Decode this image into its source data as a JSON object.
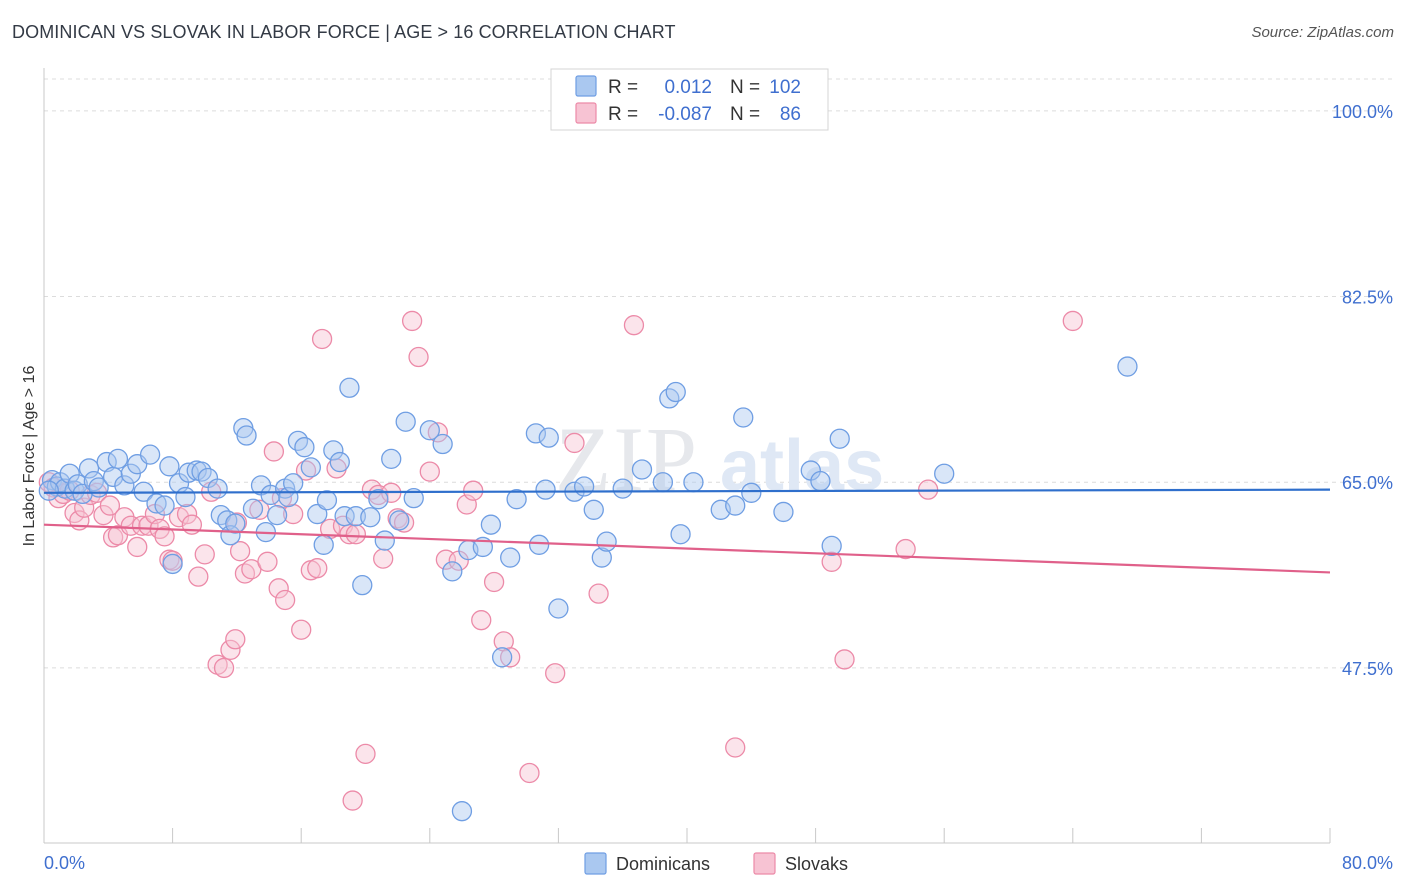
{
  "header": {
    "title": "DOMINICAN VS SLOVAK IN LABOR FORCE | AGE > 16 CORRELATION CHART",
    "source": "Source: ZipAtlas.com"
  },
  "legend_box": {
    "rows": [
      {
        "r_label": "R =",
        "r_value": "0.012",
        "n_label": "N =",
        "n_value": "102"
      },
      {
        "r_label": "R =",
        "r_value": "-0.087",
        "n_label": "N =",
        "n_value": "86"
      }
    ]
  },
  "watermark": {
    "part1": "ZIP",
    "part2": "atlas"
  },
  "colors": {
    "dominicans": "#6f9ee3",
    "dominicans_fill": "#aac8f0",
    "slovaks": "#ec8aa8",
    "slovaks_fill": "#f7c3d3",
    "blue_text": "#3f6fcf",
    "grid": "#dcdcdc",
    "blue_line": "#2f6fcc",
    "pink_line": "#e0608a"
  },
  "chart_data": {
    "type": "scatter",
    "title": "DOMINICAN VS SLOVAK IN LABOR FORCE | AGE > 16 CORRELATION CHART",
    "xlabel": "",
    "ylabel": "In Labor Force | Age > 16",
    "xlim": [
      0,
      80
    ],
    "ylim": [
      31,
      103
    ],
    "x_tick_labels": [
      "0.0%",
      "80.0%"
    ],
    "y_ticks": [
      47.5,
      65.0,
      82.5,
      100.0
    ],
    "y_tick_labels": [
      "47.5%",
      "65.0%",
      "82.5%",
      "100.0%"
    ],
    "grid": true,
    "legend_position": "bottom-center",
    "series": [
      {
        "name": "Dominicans",
        "r": 0.012,
        "n": 102,
        "trend": {
          "x": [
            0,
            80
          ],
          "y": [
            64.0,
            64.3
          ]
        },
        "points": [
          [
            0.5,
            65.2
          ],
          [
            0.8,
            64.6
          ],
          [
            1.0,
            65.0
          ],
          [
            1.3,
            64.4
          ],
          [
            1.6,
            65.8
          ],
          [
            1.9,
            64.2
          ],
          [
            2.1,
            64.8
          ],
          [
            2.4,
            63.9
          ],
          [
            2.8,
            66.3
          ],
          [
            3.1,
            65.1
          ],
          [
            3.4,
            64.5
          ],
          [
            3.9,
            66.9
          ],
          [
            4.3,
            65.5
          ],
          [
            4.6,
            67.2
          ],
          [
            5.0,
            64.7
          ],
          [
            5.4,
            65.8
          ],
          [
            5.8,
            66.7
          ],
          [
            6.2,
            64.1
          ],
          [
            6.6,
            67.6
          ],
          [
            7.0,
            63.0
          ],
          [
            7.5,
            62.8
          ],
          [
            7.8,
            66.5
          ],
          [
            8.0,
            57.3
          ],
          [
            8.4,
            64.9
          ],
          [
            8.8,
            63.6
          ],
          [
            9.0,
            65.9
          ],
          [
            9.5,
            66.1
          ],
          [
            9.8,
            66.0
          ],
          [
            10.2,
            65.4
          ],
          [
            10.8,
            64.4
          ],
          [
            11.0,
            61.9
          ],
          [
            11.4,
            61.4
          ],
          [
            11.6,
            60.0
          ],
          [
            11.9,
            61.1
          ],
          [
            12.4,
            70.1
          ],
          [
            12.6,
            69.4
          ],
          [
            13.0,
            62.5
          ],
          [
            13.5,
            64.7
          ],
          [
            13.8,
            60.3
          ],
          [
            14.1,
            63.8
          ],
          [
            14.5,
            61.9
          ],
          [
            15.0,
            64.4
          ],
          [
            15.2,
            63.6
          ],
          [
            15.5,
            64.9
          ],
          [
            15.8,
            68.9
          ],
          [
            16.2,
            68.3
          ],
          [
            16.6,
            66.4
          ],
          [
            17.0,
            62.0
          ],
          [
            17.4,
            59.1
          ],
          [
            17.6,
            63.3
          ],
          [
            18.0,
            68.0
          ],
          [
            18.4,
            66.9
          ],
          [
            18.7,
            61.8
          ],
          [
            19.0,
            73.9
          ],
          [
            19.4,
            61.8
          ],
          [
            19.8,
            55.3
          ],
          [
            20.3,
            61.7
          ],
          [
            20.8,
            63.4
          ],
          [
            21.2,
            59.5
          ],
          [
            21.6,
            67.2
          ],
          [
            22.1,
            61.4
          ],
          [
            22.5,
            70.7
          ],
          [
            23.0,
            63.5
          ],
          [
            24.0,
            69.9
          ],
          [
            24.8,
            68.6
          ],
          [
            25.4,
            56.6
          ],
          [
            26.0,
            34.0
          ],
          [
            26.4,
            58.6
          ],
          [
            27.3,
            58.9
          ],
          [
            27.8,
            61.0
          ],
          [
            28.5,
            48.5
          ],
          [
            29.0,
            57.9
          ],
          [
            29.4,
            63.4
          ],
          [
            30.6,
            69.6
          ],
          [
            30.8,
            59.1
          ],
          [
            31.2,
            64.3
          ],
          [
            31.4,
            69.2
          ],
          [
            32.0,
            53.1
          ],
          [
            33.0,
            64.1
          ],
          [
            33.6,
            64.6
          ],
          [
            34.2,
            62.4
          ],
          [
            34.7,
            57.9
          ],
          [
            35.0,
            59.4
          ],
          [
            37.2,
            66.2
          ],
          [
            38.5,
            65.0
          ],
          [
            38.9,
            72.9
          ],
          [
            39.3,
            73.5
          ],
          [
            39.6,
            60.1
          ],
          [
            40.4,
            65.0
          ],
          [
            42.1,
            62.4
          ],
          [
            43.0,
            62.8
          ],
          [
            43.5,
            71.1
          ],
          [
            44.0,
            64.0
          ],
          [
            46.0,
            62.2
          ],
          [
            47.7,
            66.1
          ],
          [
            48.3,
            65.1
          ],
          [
            49.0,
            59.0
          ],
          [
            49.5,
            69.1
          ],
          [
            56.0,
            65.8
          ],
          [
            67.4,
            75.9
          ],
          [
            0.3,
            64.2
          ],
          [
            36.0,
            64.4
          ]
        ]
      },
      {
        "name": "Slovaks",
        "r": -0.087,
        "n": 86,
        "trend": {
          "x": [
            0,
            80
          ],
          "y": [
            61.0,
            56.5
          ]
        },
        "points": [
          [
            0.3,
            65.0
          ],
          [
            0.6,
            64.5
          ],
          [
            0.9,
            63.5
          ],
          [
            1.2,
            63.9
          ],
          [
            1.6,
            64.2
          ],
          [
            1.9,
            62.1
          ],
          [
            2.2,
            61.4
          ],
          [
            2.5,
            62.6
          ],
          [
            2.9,
            63.8
          ],
          [
            3.3,
            64.0
          ],
          [
            3.7,
            61.9
          ],
          [
            4.1,
            62.8
          ],
          [
            4.3,
            59.8
          ],
          [
            4.6,
            60.0
          ],
          [
            5.0,
            61.7
          ],
          [
            5.4,
            60.9
          ],
          [
            5.8,
            58.9
          ],
          [
            6.1,
            60.9
          ],
          [
            6.5,
            60.9
          ],
          [
            6.9,
            62.0
          ],
          [
            7.2,
            60.6
          ],
          [
            7.5,
            59.9
          ],
          [
            7.8,
            57.7
          ],
          [
            8.0,
            57.6
          ],
          [
            8.4,
            61.7
          ],
          [
            8.9,
            62.0
          ],
          [
            9.2,
            61.0
          ],
          [
            9.6,
            56.1
          ],
          [
            10.0,
            58.2
          ],
          [
            10.4,
            64.1
          ],
          [
            10.8,
            47.8
          ],
          [
            11.2,
            47.5
          ],
          [
            11.6,
            49.2
          ],
          [
            11.9,
            50.2
          ],
          [
            12.2,
            58.5
          ],
          [
            12.5,
            56.4
          ],
          [
            12.9,
            56.8
          ],
          [
            13.4,
            62.4
          ],
          [
            13.9,
            57.5
          ],
          [
            14.3,
            67.9
          ],
          [
            14.6,
            55.0
          ],
          [
            15.0,
            53.9
          ],
          [
            15.5,
            62.0
          ],
          [
            16.0,
            51.1
          ],
          [
            16.3,
            66.1
          ],
          [
            16.6,
            56.7
          ],
          [
            17.0,
            56.9
          ],
          [
            17.3,
            78.5
          ],
          [
            17.8,
            60.6
          ],
          [
            18.2,
            66.3
          ],
          [
            18.6,
            60.9
          ],
          [
            19.0,
            60.1
          ],
          [
            19.4,
            60.1
          ],
          [
            20.0,
            39.4
          ],
          [
            20.4,
            64.3
          ],
          [
            20.8,
            63.8
          ],
          [
            21.1,
            57.8
          ],
          [
            21.6,
            64.0
          ],
          [
            22.0,
            61.6
          ],
          [
            22.4,
            61.2
          ],
          [
            22.9,
            80.2
          ],
          [
            23.3,
            76.8
          ],
          [
            24.0,
            66.0
          ],
          [
            24.5,
            69.7
          ],
          [
            25.0,
            57.7
          ],
          [
            25.8,
            57.6
          ],
          [
            26.3,
            62.9
          ],
          [
            26.7,
            64.2
          ],
          [
            27.2,
            52.0
          ],
          [
            28.0,
            55.6
          ],
          [
            28.6,
            50.0
          ],
          [
            29.0,
            48.5
          ],
          [
            30.2,
            37.6
          ],
          [
            31.8,
            47.0
          ],
          [
            33.0,
            68.7
          ],
          [
            34.5,
            54.5
          ],
          [
            36.7,
            79.8
          ],
          [
            43.0,
            40.0
          ],
          [
            49.0,
            57.5
          ],
          [
            49.8,
            48.3
          ],
          [
            53.6,
            58.7
          ],
          [
            55.0,
            64.3
          ],
          [
            64.0,
            80.2
          ],
          [
            19.2,
            35.0
          ],
          [
            12.0,
            61.2
          ],
          [
            14.8,
            63.5
          ]
        ]
      }
    ]
  },
  "series_legend": {
    "items": [
      {
        "label": "Dominicans"
      },
      {
        "label": "Slovaks"
      }
    ]
  }
}
